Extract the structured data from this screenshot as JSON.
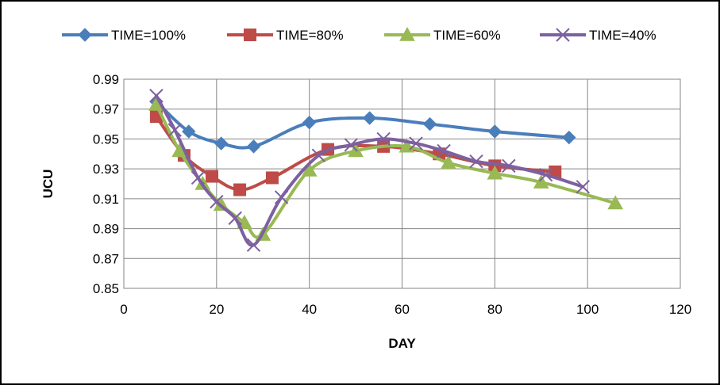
{
  "chart_data": {
    "type": "line",
    "xlabel": "DAY",
    "ylabel": "UCU",
    "xlim": [
      0,
      120
    ],
    "ylim": [
      0.85,
      0.99
    ],
    "x_ticks": [
      "0",
      "20",
      "40",
      "60",
      "80",
      "100",
      "120"
    ],
    "y_ticks": [
      "0.85",
      "0.87",
      "0.89",
      "0.91",
      "0.93",
      "0.95",
      "0.97",
      "0.99"
    ],
    "grid": true,
    "legend_position": "top",
    "series": [
      {
        "name": "TIME=100%",
        "color": "#4a7ebb",
        "marker": "diamond",
        "x": [
          7,
          14,
          21,
          28,
          40,
          53,
          66,
          80,
          96
        ],
        "y": [
          0.975,
          0.955,
          0.947,
          0.945,
          0.961,
          0.964,
          0.96,
          0.955,
          0.951
        ]
      },
      {
        "name": "TIME=80%",
        "color": "#be4b48",
        "marker": "square",
        "x": [
          7,
          13,
          19,
          25,
          32,
          44,
          56,
          68,
          80,
          93
        ],
        "y": [
          0.965,
          0.939,
          0.925,
          0.916,
          0.924,
          0.943,
          0.945,
          0.94,
          0.932,
          0.928
        ]
      },
      {
        "name": "TIME=60%",
        "color": "#98b954",
        "marker": "triangle",
        "x": [
          7,
          12,
          17,
          21,
          26,
          30,
          40,
          50,
          61,
          70,
          80,
          90,
          106
        ],
        "y": [
          0.973,
          0.942,
          0.92,
          0.906,
          0.894,
          0.886,
          0.929,
          0.942,
          0.945,
          0.934,
          0.927,
          0.921,
          0.907
        ]
      },
      {
        "name": "TIME=40%",
        "color": "#7d60a0",
        "marker": "x",
        "x": [
          7,
          11,
          16,
          20,
          24,
          28,
          34,
          42,
          49,
          56,
          63,
          69,
          76,
          83,
          91,
          99
        ],
        "y": [
          0.979,
          0.956,
          0.924,
          0.908,
          0.897,
          0.879,
          0.911,
          0.939,
          0.946,
          0.95,
          0.947,
          0.942,
          0.935,
          0.932,
          0.926,
          0.918
        ]
      }
    ]
  }
}
